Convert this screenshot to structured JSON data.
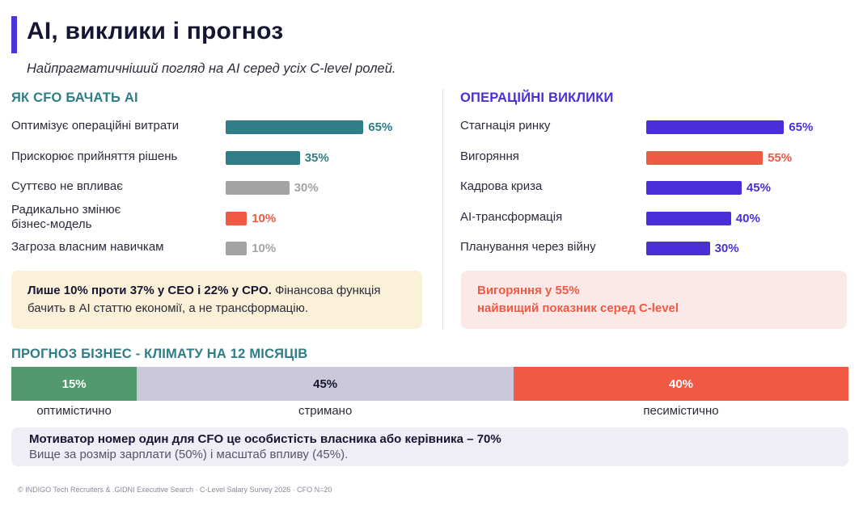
{
  "header": {
    "title": "AI, виклики і прогноз",
    "subtitle": "Найпрагматичніший погляд на AI серед усіх C-level ролей."
  },
  "colors": {
    "accent": "#4a35d8",
    "teal": "#2e7d87",
    "gray": "#a3a3a3",
    "coral": "#f05a45",
    "purple": "#4a2fd8",
    "green": "#53996e",
    "lavender": "#cbc8dc"
  },
  "left_section": {
    "heading": "ЯК CFO БАЧАТЬ AI",
    "note_bold": "Лише 10% проти 37% у CEO і 22% у CPO.",
    "note_text": " Фінансова функція бачить в AI статтю економії, а не трансформацію."
  },
  "right_section": {
    "heading": "ОПЕРАЦІЙНІ ВИКЛИКИ",
    "note_line1": "Вигоряння у 55%",
    "note_line2": "найвищий показник серед C-level"
  },
  "forecast_section": {
    "heading": "ПРОГНОЗ БІЗНЕС - КЛІМАТУ НА 12 МІСЯЦІВ"
  },
  "callout": {
    "title": "Мотиватор номер один для CFO це особистість власника або керівника – 70%",
    "text": "Вище за розмір зарплати (50%) і масштаб впливу (45%)."
  },
  "footer": "© INDIGO Tech Recruiters & .GIDNI Executive Search · C-Level Salary Survey 2026 · CFO N=20",
  "chart_data": [
    {
      "type": "bar",
      "orientation": "horizontal",
      "title": "ЯК CFO БАЧАТЬ AI",
      "xlim": [
        0,
        100
      ],
      "categories": [
        "Оптимізує операційні витрати",
        "Прискорює прийняття рішень",
        "Суттєво не впливає",
        "Радикально змінює бізнес-модель",
        "Загроза власним навичкам"
      ],
      "label_lines": [
        [
          "Оптимізує операційні витрати"
        ],
        [
          "Прискорює прийняття рішень"
        ],
        [
          "Суттєво не впливає"
        ],
        [
          "Радикально змінює",
          "бізнес-модель"
        ],
        [
          "Загроза власним навичкам"
        ]
      ],
      "values": [
        65,
        35,
        30,
        10,
        10
      ],
      "value_labels": [
        "65%",
        "35%",
        "30%",
        "10%",
        "10%"
      ],
      "bar_colors": [
        "#2e7d87",
        "#2e7d87",
        "#a3a3a3",
        "#f05a45",
        "#a3a3a3"
      ],
      "label_colors": [
        "#2e7d87",
        "#2e7d87",
        "#a3a3a3",
        "#f05a45",
        "#a3a3a3"
      ]
    },
    {
      "type": "bar",
      "orientation": "horizontal",
      "title": "ОПЕРАЦІЙНІ ВИКЛИКИ",
      "xlim": [
        0,
        100
      ],
      "categories": [
        "Стагнація ринку",
        "Вигоряння",
        "Кадрова криза",
        "AI-трансформація",
        "Планування через війну"
      ],
      "label_lines": [
        [
          "Стагнація ринку"
        ],
        [
          "Вигоряння"
        ],
        [
          "Кадрова криза"
        ],
        [
          "AI-трансформація"
        ],
        [
          "Планування через війну"
        ]
      ],
      "values": [
        65,
        55,
        45,
        40,
        30
      ],
      "value_labels": [
        "65%",
        "55%",
        "45%",
        "40%",
        "30%"
      ],
      "bar_colors": [
        "#4a2fd8",
        "#f05a45",
        "#4a2fd8",
        "#4a2fd8",
        "#4a2fd8"
      ],
      "label_colors": [
        "#4a2fd8",
        "#f05a45",
        "#4a2fd8",
        "#4a2fd8",
        "#4a2fd8"
      ]
    },
    {
      "type": "bar",
      "orientation": "stacked-horizontal",
      "title": "ПРОГНОЗ БІЗНЕС - КЛІМАТУ НА 12 МІСЯЦІВ",
      "categories": [
        "оптимістично",
        "стримано",
        "песимістично"
      ],
      "values": [
        15,
        45,
        40
      ],
      "value_labels": [
        "15%",
        "45%",
        "40%"
      ],
      "colors": [
        "#53996e",
        "#cbc8dc",
        "#f05a45"
      ],
      "text_colors": [
        "#ffffff",
        "#161633",
        "#ffffff"
      ]
    }
  ]
}
